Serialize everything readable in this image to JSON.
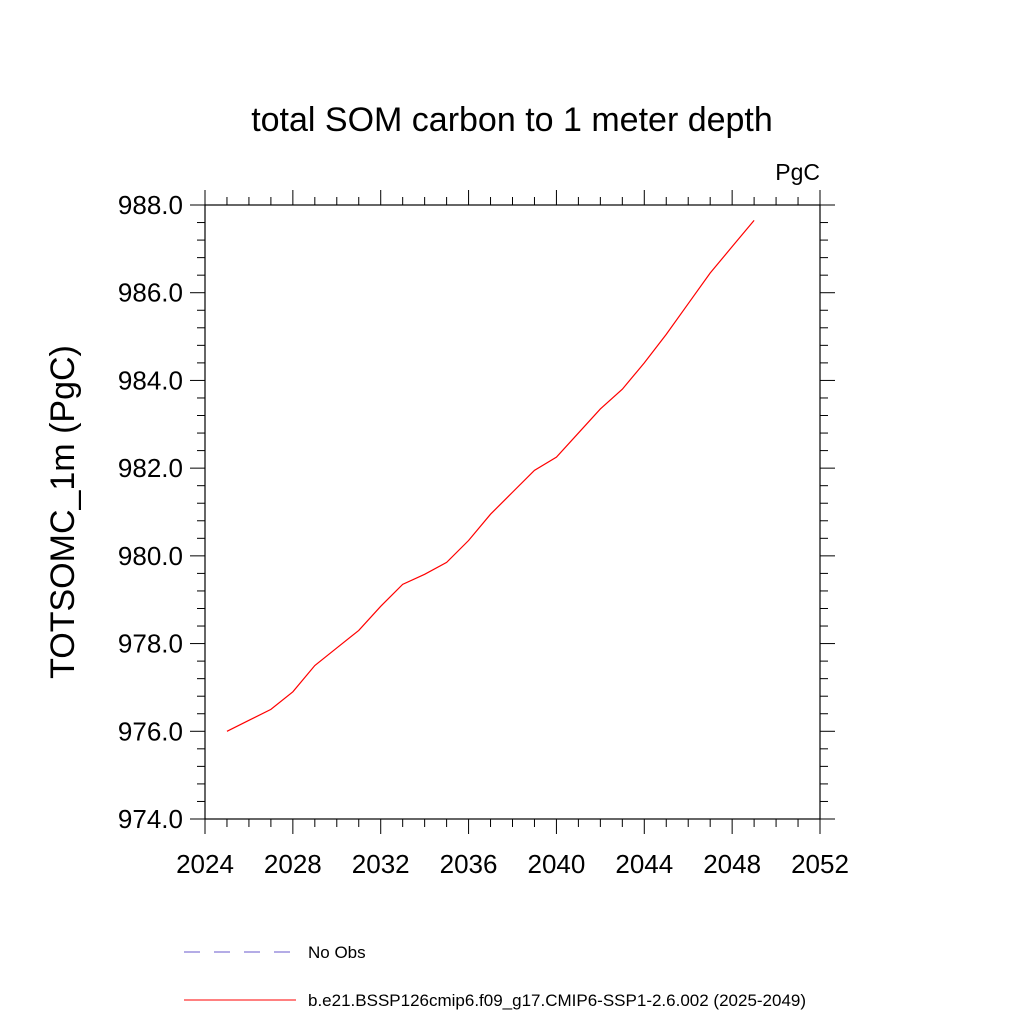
{
  "chart_data": {
    "type": "line",
    "title": "total SOM carbon to 1 meter depth",
    "units": "PgC",
    "ylabel": "TOTSOMC_1m  (PgC)",
    "xlabel": "",
    "xlim": [
      2024,
      2052
    ],
    "ylim": [
      974.0,
      988.0
    ],
    "x_ticks": [
      2024,
      2028,
      2032,
      2036,
      2040,
      2044,
      2048,
      2052
    ],
    "x_tick_labels": [
      "2024",
      "2028",
      "2032",
      "2036",
      "2040",
      "2044",
      "2048",
      "2052"
    ],
    "y_ticks": [
      974.0,
      976.0,
      978.0,
      980.0,
      982.0,
      984.0,
      986.0,
      988.0
    ],
    "y_tick_labels": [
      "974.0",
      "976.0",
      "978.0",
      "980.0",
      "982.0",
      "984.0",
      "986.0",
      "988.0"
    ],
    "x_minor_step": 1,
    "y_minor_step": 0.4,
    "grid": false,
    "legend_position": "bottom",
    "series": [
      {
        "name": "b.e21.BSSP126cmip6.f09_g17.CMIP6-SSP1-2.6.002 (2025-2049)",
        "color": "#ff0000",
        "dash": "solid",
        "x": [
          2025,
          2026,
          2027,
          2028,
          2029,
          2030,
          2031,
          2032,
          2033,
          2034,
          2035,
          2036,
          2037,
          2038,
          2039,
          2040,
          2041,
          2042,
          2043,
          2044,
          2045,
          2046,
          2047,
          2048,
          2049
        ],
        "y": [
          976.0,
          976.25,
          976.5,
          976.9,
          977.5,
          977.9,
          978.3,
          978.85,
          979.35,
          979.58,
          979.85,
          980.35,
          980.95,
          981.45,
          981.95,
          982.25,
          982.8,
          983.35,
          983.8,
          984.4,
          985.05,
          985.75,
          986.45,
          987.05,
          987.65
        ]
      }
    ],
    "legend": [
      {
        "label": "No Obs",
        "color": "#6a5acd",
        "dash": "dashed"
      },
      {
        "label": "b.e21.BSSP126cmip6.f09_g17.CMIP6-SSP1-2.6.002 (2025-2049)",
        "color": "#ff0000",
        "dash": "solid"
      }
    ]
  }
}
